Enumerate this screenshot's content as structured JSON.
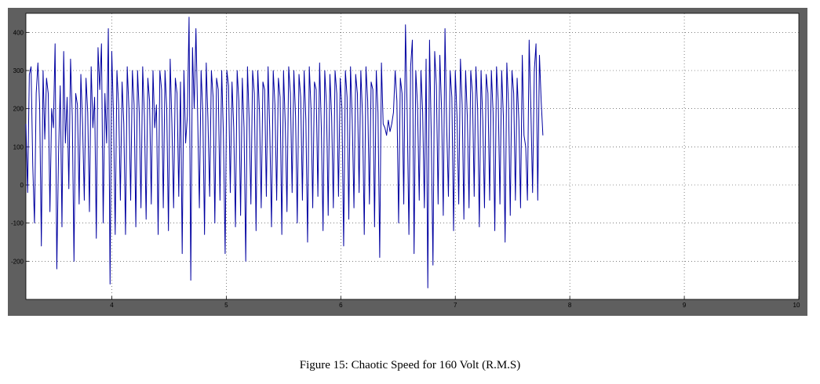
{
  "caption": "Figure 15: Chaotic Speed for 160 Volt (R.M.S)",
  "colors": {
    "frame": "#5f5f5f",
    "plot_background": "#ffffff",
    "signal": "#0000a0",
    "grid": "#333333"
  },
  "chart_data": {
    "type": "line",
    "title": "",
    "xlabel": "",
    "ylabel": "",
    "xlim": [
      3.25,
      10
    ],
    "ylim": [
      -300,
      450
    ],
    "xticks": [
      4,
      5,
      6,
      7,
      8,
      9,
      10
    ],
    "yticks": [
      -200,
      -100,
      0,
      100,
      200,
      300,
      400
    ],
    "grid": true,
    "legend": "none",
    "series": [
      {
        "name": "",
        "x_start": 3.25,
        "x_step": 0.015,
        "values": [
          160,
          -20,
          290,
          310,
          50,
          -100,
          240,
          320,
          210,
          -160,
          300,
          120,
          280,
          240,
          -70,
          200,
          150,
          370,
          -220,
          80,
          260,
          -110,
          350,
          110,
          230,
          -10,
          330,
          180,
          -200,
          240,
          210,
          -50,
          290,
          160,
          -40,
          280,
          190,
          -70,
          310,
          150,
          230,
          -140,
          360,
          250,
          370,
          -100,
          240,
          110,
          410,
          -260,
          350,
          180,
          -130,
          300,
          210,
          -40,
          270,
          160,
          -130,
          310,
          200,
          -40,
          300,
          210,
          -110,
          300,
          190,
          -60,
          310,
          180,
          -90,
          280,
          220,
          -50,
          300,
          150,
          210,
          -130,
          300,
          250,
          -60,
          300,
          200,
          -120,
          330,
          160,
          -60,
          280,
          240,
          -30,
          270,
          -180,
          300,
          110,
          180,
          440,
          -250,
          360,
          200,
          410,
          180,
          -60,
          300,
          190,
          -130,
          320,
          170,
          -30,
          300,
          230,
          -100,
          280,
          250,
          -40,
          300,
          130,
          -180,
          300,
          260,
          -20,
          270,
          150,
          -110,
          300,
          220,
          -80,
          280,
          150,
          -200,
          310,
          170,
          -50,
          300,
          240,
          -120,
          300,
          190,
          -60,
          270,
          250,
          -30,
          310,
          140,
          -110,
          300,
          210,
          -40,
          280,
          230,
          -130,
          300,
          160,
          -70,
          310,
          240,
          -20,
          300,
          180,
          -100,
          290,
          230,
          -40,
          300,
          170,
          -150,
          310,
          200,
          -60,
          270,
          250,
          -30,
          320,
          150,
          -120,
          300,
          210,
          -80,
          290,
          180,
          -60,
          300,
          240,
          -30,
          280,
          200,
          -160,
          300,
          230,
          -90,
          310,
          170,
          -60,
          290,
          240,
          -20,
          300,
          180,
          -130,
          310,
          220,
          -50,
          270,
          250,
          -110,
          300,
          190,
          -190,
          320,
          160,
          150,
          130,
          170,
          140,
          160,
          190,
          300,
          220,
          -100,
          280,
          240,
          -50,
          420,
          190,
          -130,
          310,
          380,
          -180,
          300,
          210,
          -40,
          300,
          190,
          -60,
          330,
          -270,
          380,
          130,
          -210,
          350,
          260,
          -50,
          340,
          200,
          -80,
          410,
          150,
          -30,
          300,
          230,
          -120,
          300,
          180,
          -50,
          330,
          210,
          -90,
          300,
          180,
          -60,
          300,
          240,
          -30,
          310,
          200,
          -110,
          300,
          170,
          -60,
          290,
          240,
          -40,
          300,
          190,
          -120,
          310,
          220,
          -50,
          300,
          180,
          -150,
          320,
          210,
          -80,
          300,
          240,
          -40,
          280,
          170,
          -60,
          340,
          130,
          100,
          -40,
          380,
          200,
          -20,
          300,
          370,
          -40,
          340,
          220,
          130
        ]
      }
    ]
  }
}
